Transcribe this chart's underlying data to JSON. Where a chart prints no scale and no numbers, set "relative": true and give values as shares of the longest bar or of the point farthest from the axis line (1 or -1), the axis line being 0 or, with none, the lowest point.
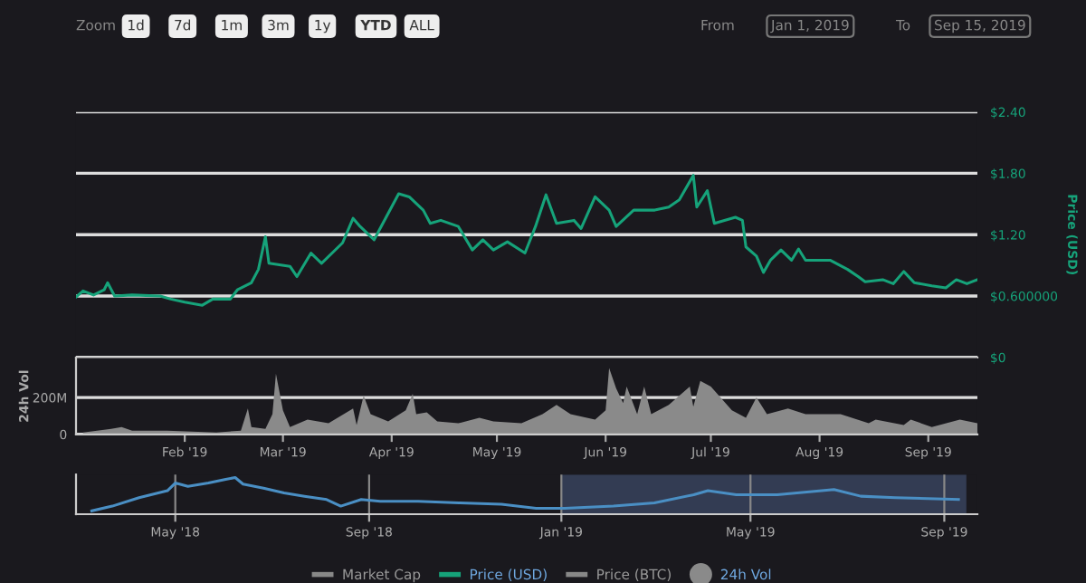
{
  "chart_data": [
    {
      "type": "line",
      "ylabel": "Price (USD)",
      "xlim": [
        "2019-01-01",
        "2019-09-15"
      ],
      "ylim": [
        0,
        2.4
      ],
      "yticks": [
        {
          "value": 0,
          "label": "$0"
        },
        {
          "value": 0.6,
          "label": "$0.600000"
        },
        {
          "value": 1.2,
          "label": "$1.20"
        },
        {
          "value": 1.8,
          "label": "$1.80"
        },
        {
          "value": 2.4,
          "label": "$2.40"
        }
      ],
      "grid": "y",
      "tick_labels": "y",
      "legend": "bottom",
      "annotations": [
        "Zoom",
        "1d",
        "7d",
        "1m",
        "3m",
        "1y",
        "YTD",
        "ALL",
        "From",
        "Jan 1, 2019",
        "To",
        "Sep 15, 2019"
      ],
      "series": [
        {
          "name": "Market Cap",
          "color": "#888888"
        },
        {
          "name": "Price (USD)",
          "color": "#16a37a",
          "x": [
            "2019-01-01",
            "2019-01-03",
            "2019-01-06",
            "2019-01-09",
            "2019-01-10",
            "2019-01-12",
            "2019-01-17",
            "2019-01-25",
            "2019-01-28",
            "2019-02-01",
            "2019-02-06",
            "2019-02-09",
            "2019-02-14",
            "2019-02-16",
            "2019-02-20",
            "2019-02-22",
            "2019-02-24",
            "2019-02-25",
            "2019-03-03",
            "2019-03-05",
            "2019-03-09",
            "2019-03-12",
            "2019-03-18",
            "2019-03-21",
            "2019-03-23",
            "2019-03-27",
            "2019-03-29",
            "2019-04-03",
            "2019-04-06",
            "2019-04-10",
            "2019-04-12",
            "2019-04-15",
            "2019-04-20",
            "2019-04-24",
            "2019-04-27",
            "2019-04-30",
            "2019-05-04",
            "2019-05-09",
            "2019-05-12",
            "2019-05-15",
            "2019-05-18",
            "2019-05-23",
            "2019-05-25",
            "2019-05-29",
            "2019-06-02",
            "2019-06-04",
            "2019-06-09",
            "2019-06-15",
            "2019-06-19",
            "2019-06-22",
            "2019-06-23",
            "2019-06-26",
            "2019-06-27",
            "2019-06-30",
            "2019-07-02",
            "2019-07-08",
            "2019-07-10",
            "2019-07-11",
            "2019-07-14",
            "2019-07-16",
            "2019-07-18",
            "2019-07-21",
            "2019-07-24",
            "2019-07-26",
            "2019-07-28",
            "2019-08-04",
            "2019-08-09",
            "2019-08-12",
            "2019-08-14",
            "2019-08-19",
            "2019-08-22",
            "2019-08-25",
            "2019-08-28",
            "2019-09-02",
            "2019-09-06",
            "2019-09-09",
            "2019-09-12",
            "2019-09-15"
          ],
          "values": [
            0.59,
            0.65,
            0.61,
            0.66,
            0.73,
            0.6,
            0.61,
            0.6,
            0.57,
            0.54,
            0.51,
            0.57,
            0.57,
            0.66,
            0.73,
            0.86,
            1.18,
            0.92,
            0.89,
            0.79,
            1.02,
            0.92,
            1.12,
            1.36,
            1.28,
            1.15,
            1.28,
            1.6,
            1.57,
            1.44,
            1.31,
            1.34,
            1.28,
            1.05,
            1.15,
            1.05,
            1.13,
            1.02,
            1.28,
            1.59,
            1.31,
            1.34,
            1.26,
            1.57,
            1.44,
            1.28,
            1.44,
            1.44,
            1.47,
            1.54,
            1.6,
            1.78,
            1.47,
            1.63,
            1.31,
            1.37,
            1.34,
            1.08,
            0.99,
            0.83,
            0.95,
            1.05,
            0.95,
            1.06,
            0.95,
            0.95,
            0.86,
            0.79,
            0.74,
            0.76,
            0.72,
            0.84,
            0.73,
            0.7,
            0.68,
            0.76,
            0.72,
            0.76
          ]
        },
        {
          "name": "Price (BTC)",
          "color": "#888888"
        }
      ]
    },
    {
      "type": "area",
      "ylabel": "24h Vol",
      "xlim": [
        "2019-01-01",
        "2019-09-15"
      ],
      "ylim": [
        0,
        415
      ],
      "yticks": [
        {
          "value": 0,
          "label": "0"
        },
        {
          "value": 200,
          "label": "200M"
        }
      ],
      "xticks": [
        {
          "value": "2019-02-01",
          "label": "Feb '19"
        },
        {
          "value": "2019-03-01",
          "label": "Mar '19"
        },
        {
          "value": "2019-04-01",
          "label": "Apr '19"
        },
        {
          "value": "2019-05-01",
          "label": "May '19"
        },
        {
          "value": "2019-06-01",
          "label": "Jun '19"
        },
        {
          "value": "2019-07-01",
          "label": "Jul '19"
        },
        {
          "value": "2019-08-01",
          "label": "Aug '19"
        },
        {
          "value": "2019-09-01",
          "label": "Sep '19"
        }
      ],
      "grid": "y",
      "series": [
        {
          "name": "24h Vol",
          "color": "#8a8a8a",
          "x": [
            "2019-01-03",
            "2019-01-11",
            "2019-01-14",
            "2019-01-17",
            "2019-01-27",
            "2019-02-10",
            "2019-02-17",
            "2019-02-18",
            "2019-02-19",
            "2019-02-20",
            "2019-02-24",
            "2019-02-26",
            "2019-02-27",
            "2019-03-01",
            "2019-03-03",
            "2019-03-08",
            "2019-03-14",
            "2019-03-21",
            "2019-03-22",
            "2019-03-24",
            "2019-03-26",
            "2019-03-31",
            "2019-04-05",
            "2019-04-07",
            "2019-04-08",
            "2019-04-11",
            "2019-04-14",
            "2019-04-20",
            "2019-04-26",
            "2019-04-30",
            "2019-05-08",
            "2019-05-14",
            "2019-05-18",
            "2019-05-22",
            "2019-05-29",
            "2019-06-01",
            "2019-06-02",
            "2019-06-04",
            "2019-06-06",
            "2019-06-07",
            "2019-06-10",
            "2019-06-12",
            "2019-06-14",
            "2019-06-19",
            "2019-06-25",
            "2019-06-26",
            "2019-06-28",
            "2019-07-01",
            "2019-07-07",
            "2019-07-11",
            "2019-07-14",
            "2019-07-17",
            "2019-07-23",
            "2019-07-28",
            "2019-08-07",
            "2019-08-15",
            "2019-08-17",
            "2019-08-25",
            "2019-08-27",
            "2019-09-02",
            "2019-09-10",
            "2019-09-15"
          ],
          "values": [
            10,
            30,
            40,
            20,
            20,
            10,
            20,
            80,
            140,
            40,
            30,
            110,
            330,
            130,
            40,
            80,
            60,
            140,
            50,
            210,
            110,
            70,
            130,
            220,
            110,
            120,
            70,
            60,
            90,
            70,
            60,
            110,
            160,
            110,
            80,
            130,
            360,
            250,
            170,
            260,
            110,
            260,
            110,
            160,
            260,
            150,
            290,
            260,
            130,
            90,
            200,
            110,
            140,
            110,
            110,
            60,
            80,
            50,
            80,
            40,
            80,
            60
          ]
        }
      ]
    },
    {
      "type": "line",
      "relative": true,
      "xlim": [
        "2018-02-27",
        "2019-09-22"
      ],
      "xticks": [
        {
          "value": "2018-05-01",
          "label": "May '18"
        },
        {
          "value": "2018-09-01",
          "label": "Sep '18"
        },
        {
          "value": "2019-01-01",
          "label": "Jan '19"
        },
        {
          "value": "2019-05-01",
          "label": "May '19"
        },
        {
          "value": "2019-09-01",
          "label": "Sep '19"
        }
      ],
      "grid": "x",
      "bands": [
        {
          "axis": "x",
          "from": "2019-01-01",
          "to": "2019-09-15",
          "color": "#3a4560"
        }
      ],
      "series": [
        {
          "color": "#4a8fc4",
          "x": [
            "2018-03-09",
            "2018-03-22",
            "2018-04-08",
            "2018-04-26",
            "2018-05-01",
            "2018-05-09",
            "2018-05-22",
            "2018-06-02",
            "2018-06-08",
            "2018-06-13",
            "2018-06-26",
            "2018-07-09",
            "2018-07-22",
            "2018-08-05",
            "2018-08-14",
            "2018-08-27",
            "2018-09-08",
            "2018-10-02",
            "2018-10-28",
            "2018-11-24",
            "2018-12-16",
            "2019-01-03",
            "2019-02-03",
            "2019-03-01",
            "2019-03-26",
            "2019-04-04",
            "2019-04-22",
            "2019-05-18",
            "2019-06-23",
            "2019-07-10",
            "2019-08-01",
            "2019-09-10"
          ],
          "values": [
            0.09,
            0.22,
            0.45,
            0.64,
            0.85,
            0.76,
            0.85,
            0.95,
            1.0,
            0.82,
            0.71,
            0.58,
            0.49,
            0.4,
            0.22,
            0.4,
            0.35,
            0.35,
            0.31,
            0.27,
            0.16,
            0.16,
            0.22,
            0.31,
            0.53,
            0.64,
            0.53,
            0.53,
            0.67,
            0.49,
            0.45,
            0.4
          ]
        }
      ]
    }
  ]
}
